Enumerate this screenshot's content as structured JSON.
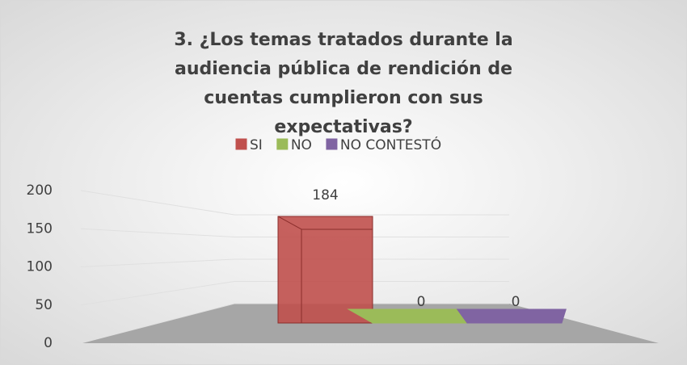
{
  "chart_data": {
    "type": "bar3d",
    "title": "3.   ¿Los temas tratados durante la audiencia pública de rendición de cuentas cumplieron con sus expectativas?",
    "categories": [
      null
    ],
    "series": [
      {
        "name": "SI",
        "color": "#c0504d",
        "values": [
          184
        ]
      },
      {
        "name": "NO",
        "color": "#9bbb59",
        "values": [
          0
        ]
      },
      {
        "name": "NO CONTESTÓ",
        "color": "#8064a2",
        "values": [
          0
        ]
      }
    ],
    "ylim": [
      0,
      200
    ],
    "yticks": [
      0,
      50,
      100,
      150,
      200
    ],
    "grid": true,
    "legend": "top"
  }
}
